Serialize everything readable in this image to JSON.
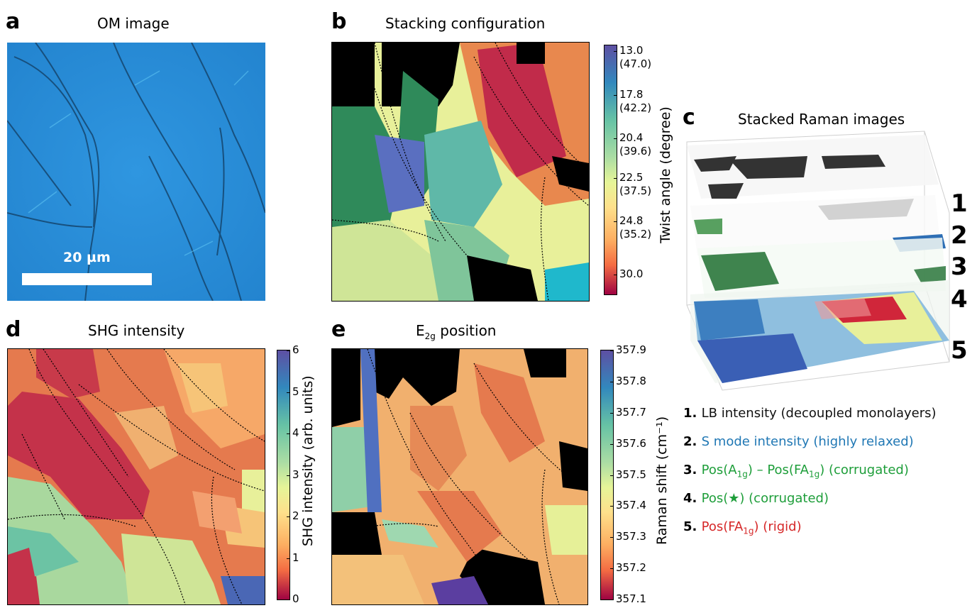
{
  "panels": {
    "a": {
      "letter": "a",
      "title": "OM image",
      "scalebar_label": "20 µm"
    },
    "b": {
      "letter": "b",
      "title": "Stacking configuration",
      "colorbar": {
        "label": "Twist angle (degree)",
        "ticks": [
          {
            "l1": "13.0",
            "l2": "(47.0)"
          },
          {
            "l1": "17.8",
            "l2": "(42.2)"
          },
          {
            "l1": "20.4",
            "l2": "(39.6)"
          },
          {
            "l1": "22.5",
            "l2": "(37.5)"
          },
          {
            "l1": "24.8",
            "l2": "(35.2)"
          },
          {
            "l1": "30.0",
            "l2": ""
          }
        ]
      }
    },
    "c": {
      "letter": "c",
      "title": "Stacked Raman images",
      "layer_numbers": [
        "1",
        "2",
        "3",
        "4",
        "5"
      ],
      "legend": [
        {
          "num": "1.",
          "pre": "LB intensity (decoupled monolayers)",
          "sub1": "",
          "mid": "",
          "sub2": "",
          "post": "",
          "color": "#111111"
        },
        {
          "num": "2.",
          "pre": "S mode intensity (highly relaxed)",
          "sub1": "",
          "mid": "",
          "sub2": "",
          "post": "",
          "color": "#1f77b4"
        },
        {
          "num": "3.",
          "pre": "Pos(A",
          "sub1": "1g",
          "mid": ") – Pos(FA",
          "sub2": "1g",
          "post": ") (corrugated)",
          "color": "#1e9e3a"
        },
        {
          "num": "4.",
          "pre": "Pos(★) (corrugated)",
          "sub1": "",
          "mid": "",
          "sub2": "",
          "post": "",
          "color": "#1e9e3a"
        },
        {
          "num": "5.",
          "pre": "Pos(FA",
          "sub1": "1g",
          "mid": ") (rigid)",
          "sub2": "",
          "post": "",
          "color": "#d62728"
        }
      ]
    },
    "d": {
      "letter": "d",
      "title": "SHG intensity",
      "colorbar": {
        "label": "SHG intensity (arb. units)",
        "ticks": [
          "6",
          "5",
          "4",
          "3",
          "2",
          "1",
          "0"
        ]
      }
    },
    "e": {
      "letter": "e",
      "title_pre": "E",
      "title_sub": "2g",
      "title_post": " position",
      "colorbar": {
        "label": "Raman shift (cm⁻¹)",
        "ticks": [
          "357.9",
          "357.8",
          "357.7",
          "357.6",
          "357.5",
          "357.4",
          "357.3",
          "357.2",
          "357.1"
        ]
      }
    }
  },
  "colors": {
    "om_blue": "#2a8fd9",
    "black_region": "#000000",
    "green_region": "#2e8b57"
  }
}
